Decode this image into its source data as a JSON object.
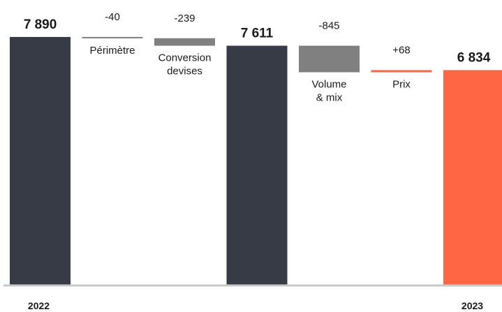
{
  "chart_data": {
    "type": "waterfall",
    "title": "",
    "xlabel": "",
    "ylabel": "",
    "grid": false,
    "legend": "none",
    "categories": [
      "2022",
      "Périmètre",
      "Conversion devises",
      "",
      "Volume & mix",
      "Prix",
      "2023"
    ],
    "steps": [
      {
        "kind": "total",
        "value": 7890,
        "value_label": "7 890",
        "label_lines": [],
        "year_label": "2022",
        "color": "#363b45"
      },
      {
        "kind": "delta",
        "value": -40,
        "value_label": "-40",
        "label_lines": [
          "Périmètre"
        ],
        "year_label": "",
        "color": "#808080"
      },
      {
        "kind": "delta",
        "value": -239,
        "value_label": "-239",
        "label_lines": [
          "Conversion",
          "devises"
        ],
        "year_label": "",
        "color": "#808080"
      },
      {
        "kind": "total",
        "value": 7611,
        "value_label": "7 611",
        "label_lines": [],
        "year_label": "",
        "color": "#363b45"
      },
      {
        "kind": "delta",
        "value": -845,
        "value_label": "-845",
        "label_lines": [
          "Volume",
          "& mix"
        ],
        "year_label": "",
        "color": "#808080"
      },
      {
        "kind": "delta",
        "value": 68,
        "value_label": "+68",
        "label_lines": [
          "Prix"
        ],
        "year_label": "",
        "color": "#ff6644"
      },
      {
        "kind": "total",
        "value": 6834,
        "value_label": "6 834",
        "label_lines": [],
        "year_label": "2023",
        "color": "#ff6644"
      }
    ],
    "axis_color": "#c8c8c8"
  }
}
